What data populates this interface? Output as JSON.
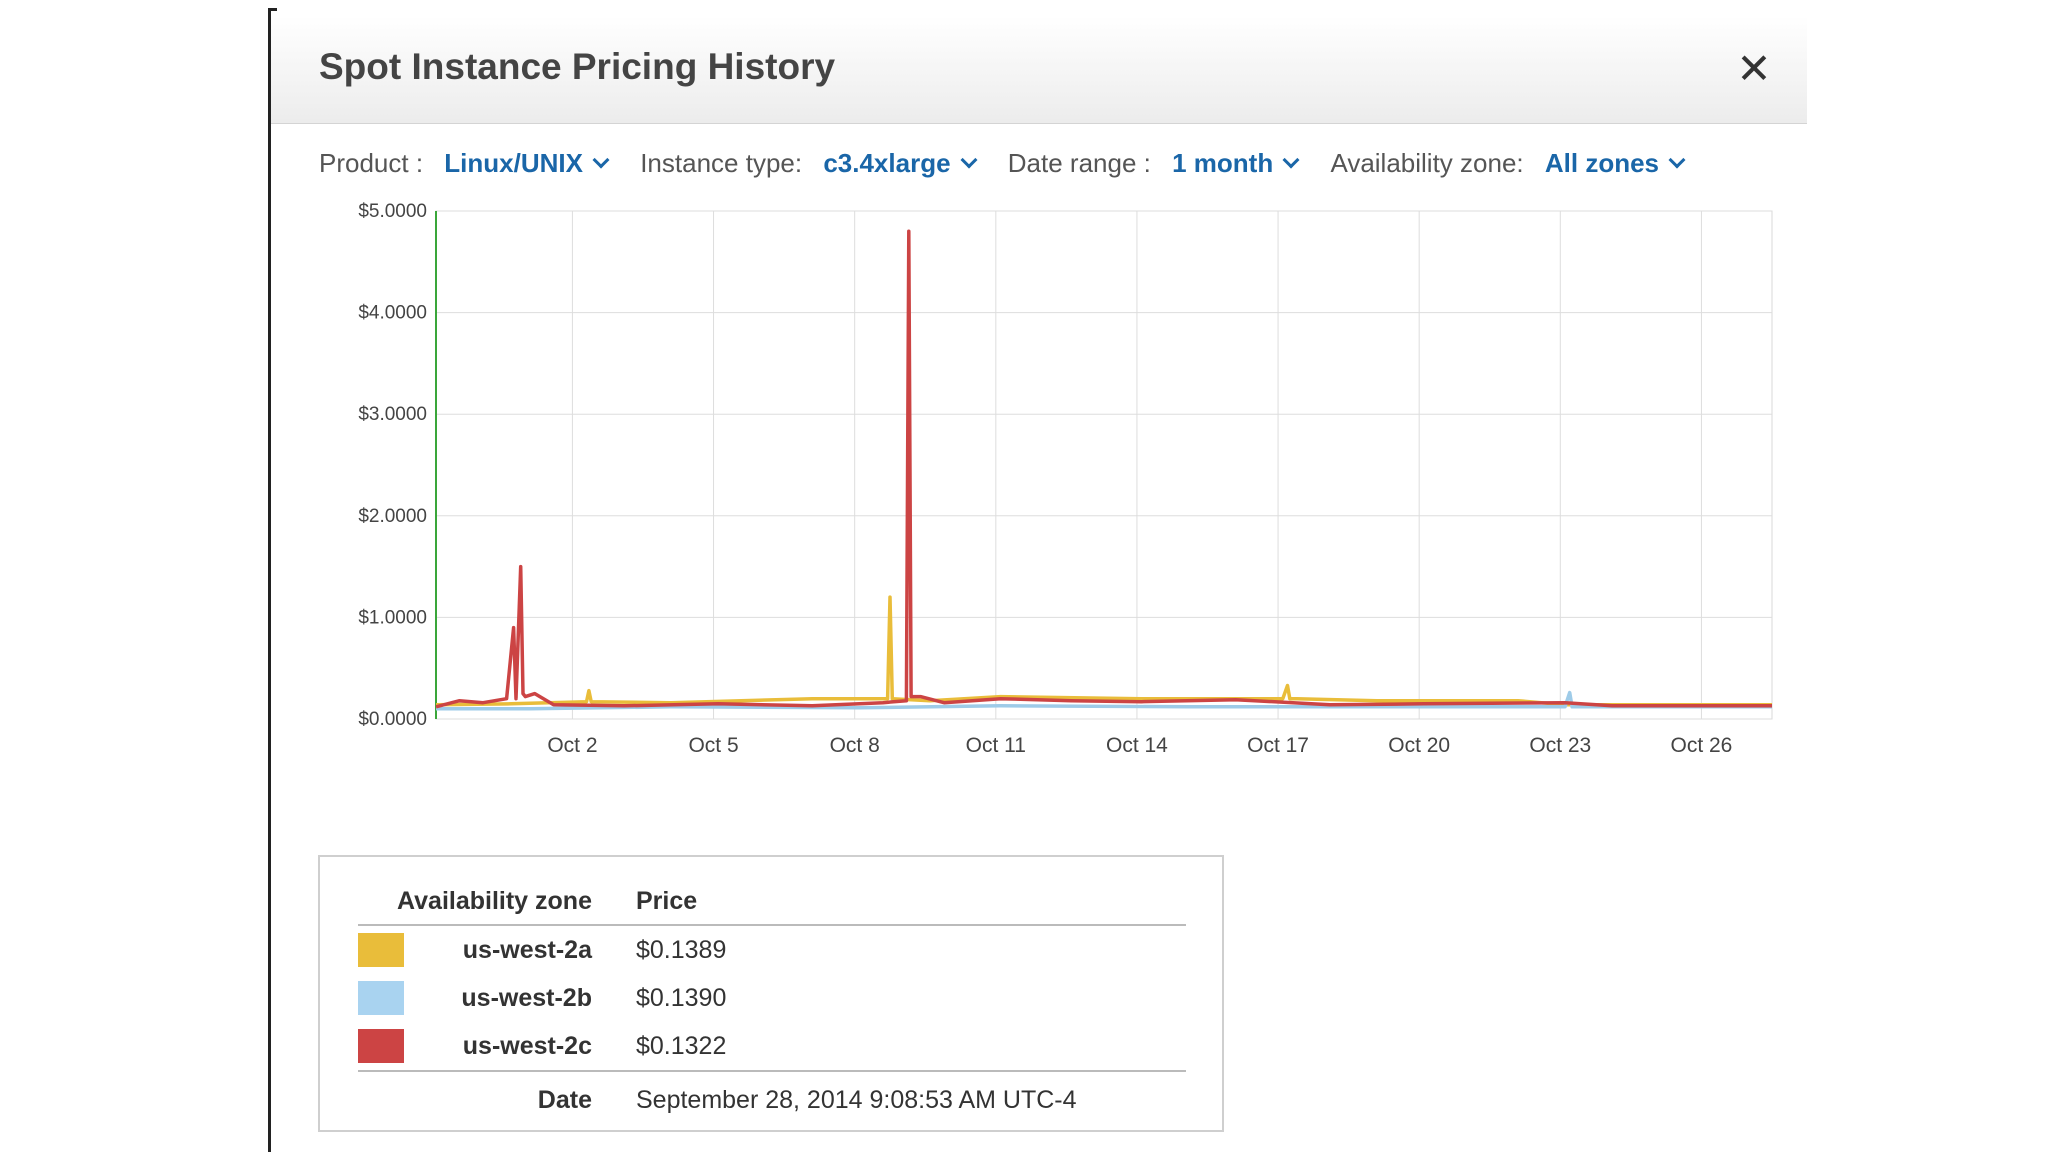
{
  "dialog": {
    "title": "Spot Instance Pricing History",
    "close_label": "✕"
  },
  "filters": {
    "product_label": "Product :",
    "product_value": "Linux/UNIX",
    "instance_type_label": "Instance type:",
    "instance_type_value": "c3.4xlarge",
    "date_range_label": "Date range :",
    "date_range_value": "1 month",
    "availability_zone_label": "Availability zone:",
    "availability_zone_value": "All zones"
  },
  "chart_data": {
    "type": "line",
    "x_start": "Sep 28",
    "x_end": "Oct 27",
    "xlim_days": [
      0,
      28.4
    ],
    "ylim": [
      0,
      5
    ],
    "y_ticks": [
      "$5.0000",
      "$4.0000",
      "$3.0000",
      "$2.0000",
      "$1.0000",
      "$0.0000"
    ],
    "y_tick_values": [
      5,
      4,
      3,
      2,
      1,
      0
    ],
    "x_ticks": [
      "Oct 2",
      "Oct 5",
      "Oct 8",
      "Oct 11",
      "Oct 14",
      "Oct 17",
      "Oct 20",
      "Oct 23",
      "Oct 26"
    ],
    "x_tick_days": [
      2.9,
      5.9,
      8.9,
      11.9,
      14.9,
      17.9,
      20.9,
      23.9,
      26.9
    ],
    "grid": true,
    "series": [
      {
        "name": "us-west-2a",
        "color": "#e9bd3a",
        "x": [
          0,
          1.6,
          3.2,
          3.25,
          3.3,
          5.0,
          8.0,
          9.6,
          9.65,
          9.7,
          10.5,
          12.0,
          15.0,
          18.0,
          18.1,
          18.15,
          18.3,
          20.0,
          23.0,
          24.0,
          28.4
        ],
        "values": [
          0.14,
          0.15,
          0.17,
          0.28,
          0.17,
          0.16,
          0.2,
          0.2,
          1.2,
          0.2,
          0.18,
          0.22,
          0.2,
          0.2,
          0.33,
          0.2,
          0.2,
          0.18,
          0.18,
          0.14,
          0.14
        ]
      },
      {
        "name": "us-west-2b",
        "color": "#9ecbe8",
        "x": [
          0,
          2.0,
          5.0,
          9.0,
          12.0,
          16.0,
          20.0,
          24.0,
          24.1,
          24.15,
          24.2,
          28.4
        ],
        "values": [
          0.1,
          0.1,
          0.12,
          0.11,
          0.13,
          0.12,
          0.12,
          0.12,
          0.26,
          0.12,
          0.12,
          0.12
        ]
      },
      {
        "name": "us-west-2c",
        "color": "#cc4444",
        "x": [
          0,
          0.5,
          1.0,
          1.5,
          1.65,
          1.7,
          1.8,
          1.85,
          1.9,
          2.1,
          2.5,
          4.0,
          6.0,
          8.0,
          9.5,
          10.0,
          10.05,
          10.1,
          10.3,
          10.8,
          12.0,
          13.5,
          15.0,
          17.0,
          19.0,
          21.0,
          24.0,
          25.0,
          28.4
        ],
        "values": [
          0.12,
          0.18,
          0.16,
          0.2,
          0.9,
          0.2,
          1.5,
          0.25,
          0.22,
          0.25,
          0.14,
          0.13,
          0.15,
          0.13,
          0.16,
          0.18,
          4.8,
          0.22,
          0.22,
          0.16,
          0.2,
          0.18,
          0.17,
          0.19,
          0.14,
          0.15,
          0.16,
          0.13,
          0.13
        ]
      }
    ]
  },
  "legend": {
    "header_zone": "Availability zone",
    "header_price": "Price",
    "rows": [
      {
        "zone": "us-west-2a",
        "price": "$0.1389",
        "color": "#e9bd3a"
      },
      {
        "zone": "us-west-2b",
        "price": "$0.1390",
        "color": "#a9d3f0"
      },
      {
        "zone": "us-west-2c",
        "price": "$0.1322",
        "color": "#cc4444"
      }
    ],
    "date_label": "Date",
    "date_value": "September 28, 2014 9:08:53 AM UTC-4"
  }
}
